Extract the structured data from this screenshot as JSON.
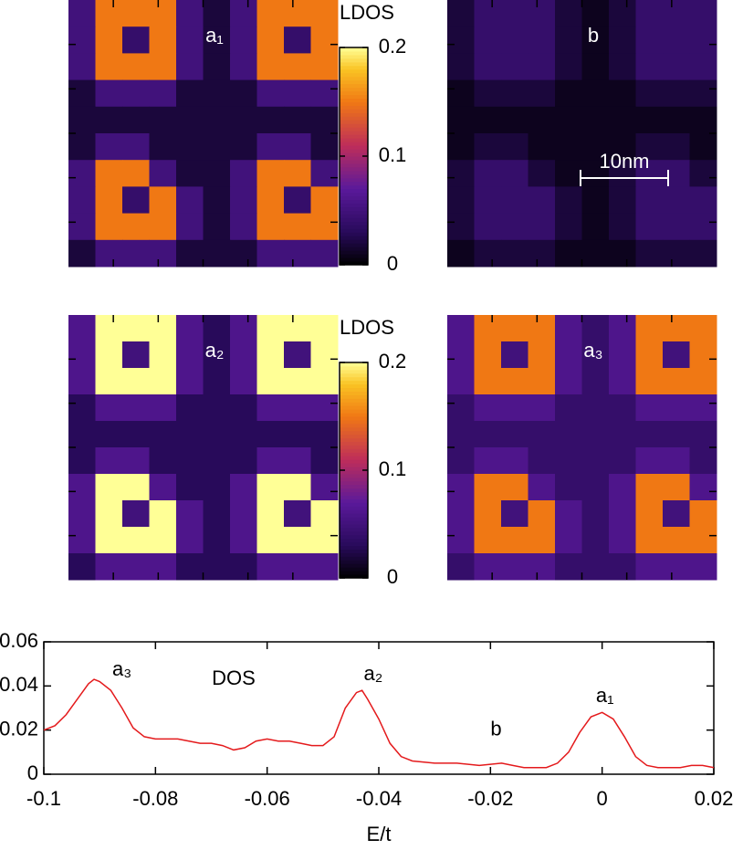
{
  "chart_data": [
    {
      "type": "heatmap",
      "label": "a₁",
      "clim": [
        0,
        0.2
      ],
      "colorbar": {
        "title": "LDOS",
        "ticks": [
          0,
          0.1,
          0.2
        ]
      },
      "values": [
        [
          0.05,
          0.15,
          0.15,
          0.15,
          0.05,
          0.02,
          0.05,
          0.15,
          0.15,
          0.15
        ],
        [
          0.05,
          0.15,
          0.04,
          0.15,
          0.05,
          0.02,
          0.05,
          0.15,
          0.04,
          0.15
        ],
        [
          0.05,
          0.15,
          0.15,
          0.15,
          0.05,
          0.02,
          0.05,
          0.15,
          0.15,
          0.15
        ],
        [
          0.02,
          0.05,
          0.05,
          0.05,
          0.02,
          0.02,
          0.02,
          0.05,
          0.05,
          0.05
        ],
        [
          0.02,
          0.02,
          0.02,
          0.02,
          0.02,
          0.02,
          0.02,
          0.02,
          0.02,
          0.02
        ],
        [
          0.02,
          0.05,
          0.05,
          0.02,
          0.02,
          0.02,
          0.02,
          0.05,
          0.05,
          0.02
        ],
        [
          0.05,
          0.15,
          0.15,
          0.05,
          0.02,
          0.02,
          0.05,
          0.15,
          0.15,
          0.05
        ],
        [
          0.05,
          0.15,
          0.04,
          0.15,
          0.05,
          0.02,
          0.05,
          0.15,
          0.04,
          0.15
        ],
        [
          0.05,
          0.15,
          0.15,
          0.15,
          0.05,
          0.02,
          0.05,
          0.15,
          0.15,
          0.15
        ],
        [
          0.02,
          0.05,
          0.05,
          0.05,
          0.02,
          0.02,
          0.02,
          0.05,
          0.05,
          0.05
        ]
      ]
    },
    {
      "type": "heatmap",
      "label": "b",
      "clim": [
        0,
        0.2
      ],
      "scalebar": "10nm",
      "values": [
        [
          0.02,
          0.04,
          0.04,
          0.04,
          0.02,
          0.01,
          0.02,
          0.04,
          0.04,
          0.04
        ],
        [
          0.02,
          0.04,
          0.04,
          0.04,
          0.02,
          0.01,
          0.02,
          0.04,
          0.04,
          0.04
        ],
        [
          0.02,
          0.04,
          0.04,
          0.04,
          0.02,
          0.01,
          0.02,
          0.04,
          0.04,
          0.04
        ],
        [
          0.01,
          0.02,
          0.02,
          0.02,
          0.01,
          0.01,
          0.01,
          0.02,
          0.02,
          0.02
        ],
        [
          0.01,
          0.01,
          0.01,
          0.01,
          0.01,
          0.01,
          0.01,
          0.01,
          0.01,
          0.01
        ],
        [
          0.01,
          0.02,
          0.02,
          0.01,
          0.01,
          0.01,
          0.01,
          0.02,
          0.02,
          0.01
        ],
        [
          0.02,
          0.04,
          0.04,
          0.02,
          0.01,
          0.01,
          0.02,
          0.04,
          0.04,
          0.02
        ],
        [
          0.02,
          0.04,
          0.04,
          0.04,
          0.02,
          0.01,
          0.02,
          0.04,
          0.04,
          0.04
        ],
        [
          0.02,
          0.04,
          0.04,
          0.04,
          0.02,
          0.01,
          0.02,
          0.04,
          0.04,
          0.04
        ],
        [
          0.01,
          0.02,
          0.02,
          0.02,
          0.01,
          0.01,
          0.01,
          0.02,
          0.02,
          0.02
        ]
      ]
    },
    {
      "type": "heatmap",
      "label": "a₂",
      "clim": [
        0,
        0.2
      ],
      "colorbar": {
        "title": "LDOS",
        "ticks": [
          0,
          0.1,
          0.2
        ]
      },
      "values": [
        [
          0.06,
          0.21,
          0.21,
          0.21,
          0.06,
          0.03,
          0.06,
          0.21,
          0.21,
          0.21
        ],
        [
          0.06,
          0.21,
          0.05,
          0.21,
          0.06,
          0.03,
          0.06,
          0.21,
          0.05,
          0.21
        ],
        [
          0.06,
          0.21,
          0.21,
          0.21,
          0.06,
          0.03,
          0.06,
          0.21,
          0.21,
          0.21
        ],
        [
          0.03,
          0.06,
          0.06,
          0.06,
          0.03,
          0.03,
          0.03,
          0.06,
          0.06,
          0.06
        ],
        [
          0.03,
          0.03,
          0.03,
          0.03,
          0.03,
          0.03,
          0.03,
          0.03,
          0.03,
          0.03
        ],
        [
          0.03,
          0.06,
          0.06,
          0.03,
          0.03,
          0.03,
          0.03,
          0.06,
          0.06,
          0.03
        ],
        [
          0.06,
          0.21,
          0.21,
          0.06,
          0.03,
          0.03,
          0.06,
          0.21,
          0.21,
          0.06
        ],
        [
          0.06,
          0.21,
          0.05,
          0.21,
          0.06,
          0.03,
          0.06,
          0.21,
          0.05,
          0.21
        ],
        [
          0.06,
          0.21,
          0.21,
          0.21,
          0.06,
          0.03,
          0.06,
          0.21,
          0.21,
          0.21
        ],
        [
          0.03,
          0.06,
          0.06,
          0.06,
          0.03,
          0.03,
          0.03,
          0.06,
          0.06,
          0.06
        ]
      ]
    },
    {
      "type": "heatmap",
      "label": "a₃",
      "clim": [
        0,
        0.2
      ],
      "values": [
        [
          0.06,
          0.15,
          0.15,
          0.15,
          0.06,
          0.04,
          0.06,
          0.15,
          0.15,
          0.15
        ],
        [
          0.06,
          0.15,
          0.05,
          0.15,
          0.06,
          0.04,
          0.06,
          0.15,
          0.05,
          0.15
        ],
        [
          0.06,
          0.15,
          0.15,
          0.15,
          0.06,
          0.04,
          0.06,
          0.15,
          0.15,
          0.15
        ],
        [
          0.04,
          0.06,
          0.06,
          0.06,
          0.04,
          0.04,
          0.04,
          0.06,
          0.06,
          0.06
        ],
        [
          0.04,
          0.04,
          0.04,
          0.04,
          0.04,
          0.04,
          0.04,
          0.04,
          0.04,
          0.04
        ],
        [
          0.04,
          0.06,
          0.06,
          0.04,
          0.04,
          0.04,
          0.04,
          0.06,
          0.06,
          0.04
        ],
        [
          0.06,
          0.15,
          0.15,
          0.06,
          0.04,
          0.04,
          0.06,
          0.15,
          0.15,
          0.06
        ],
        [
          0.06,
          0.15,
          0.05,
          0.15,
          0.06,
          0.04,
          0.06,
          0.15,
          0.05,
          0.15
        ],
        [
          0.06,
          0.15,
          0.15,
          0.15,
          0.06,
          0.04,
          0.06,
          0.15,
          0.15,
          0.15
        ],
        [
          0.04,
          0.06,
          0.06,
          0.06,
          0.04,
          0.04,
          0.04,
          0.06,
          0.06,
          0.06
        ]
      ]
    },
    {
      "type": "line",
      "x_label": "E/t",
      "xlim": [
        -0.1,
        0.02
      ],
      "xticks": [
        -0.1,
        -0.08,
        -0.06,
        -0.04,
        -0.02,
        0,
        0.02
      ],
      "ylim": [
        0,
        0.06
      ],
      "yticks": [
        0,
        0.02,
        0.04,
        0.06
      ],
      "annotations": [
        {
          "text": "a₃",
          "x": -0.086,
          "y": 0.047
        },
        {
          "text": "DOS",
          "x": -0.066,
          "y": 0.043
        },
        {
          "text": "a₂",
          "x": -0.041,
          "y": 0.045
        },
        {
          "text": "b",
          "x": -0.019,
          "y": 0.02
        },
        {
          "text": "a₁",
          "x": 0.0005,
          "y": 0.035
        }
      ],
      "series": [
        {
          "color": "#e41a1c",
          "x": [
            -0.1,
            -0.098,
            -0.096,
            -0.094,
            -0.092,
            -0.091,
            -0.09,
            -0.088,
            -0.086,
            -0.084,
            -0.082,
            -0.08,
            -0.078,
            -0.076,
            -0.074,
            -0.072,
            -0.07,
            -0.068,
            -0.066,
            -0.064,
            -0.062,
            -0.06,
            -0.058,
            -0.056,
            -0.054,
            -0.052,
            -0.05,
            -0.048,
            -0.046,
            -0.044,
            -0.043,
            -0.042,
            -0.04,
            -0.038,
            -0.036,
            -0.034,
            -0.03,
            -0.026,
            -0.022,
            -0.018,
            -0.016,
            -0.014,
            -0.012,
            -0.01,
            -0.008,
            -0.006,
            -0.004,
            -0.002,
            0,
            0.002,
            0.004,
            0.006,
            0.008,
            0.01,
            0.012,
            0.014,
            0.016,
            0.018,
            0.02
          ],
          "values": [
            0.02,
            0.022,
            0.027,
            0.034,
            0.041,
            0.043,
            0.042,
            0.038,
            0.03,
            0.021,
            0.017,
            0.016,
            0.016,
            0.016,
            0.015,
            0.014,
            0.014,
            0.013,
            0.011,
            0.012,
            0.015,
            0.016,
            0.015,
            0.015,
            0.014,
            0.013,
            0.013,
            0.017,
            0.03,
            0.037,
            0.038,
            0.034,
            0.025,
            0.014,
            0.008,
            0.006,
            0.005,
            0.005,
            0.004,
            0.005,
            0.004,
            0.003,
            0.003,
            0.003,
            0.005,
            0.01,
            0.019,
            0.026,
            0.028,
            0.025,
            0.017,
            0.008,
            0.004,
            0.003,
            0.003,
            0.003,
            0.004,
            0.004,
            0.003
          ]
        }
      ]
    }
  ]
}
